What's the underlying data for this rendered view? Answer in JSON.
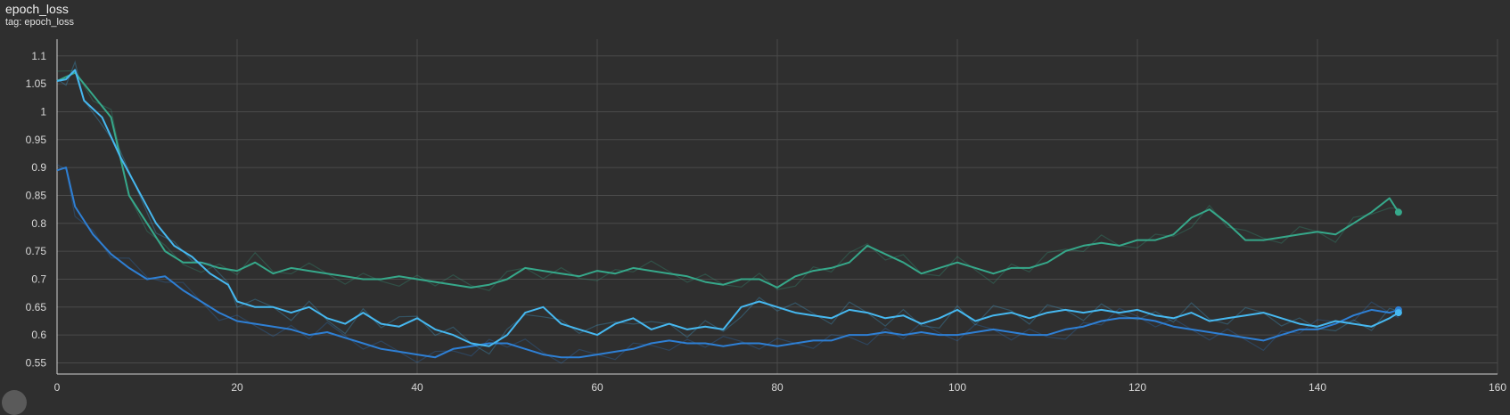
{
  "header": {
    "title": "epoch_loss",
    "tag": "tag: epoch_loss"
  },
  "colors": {
    "background": "#2f2f2f",
    "grid": "#4a4a4a",
    "axis": "#d0d0d0",
    "series_green": "#36a88a",
    "series_blue": "#2e7fd4",
    "series_cyan": "#46b8f0"
  },
  "chart_data": {
    "type": "line",
    "title": "epoch_loss",
    "xlabel": "",
    "ylabel": "",
    "xlim": [
      0,
      160
    ],
    "ylim": [
      0.53,
      1.13
    ],
    "grid": true,
    "x_ticks": [
      0,
      20,
      40,
      60,
      80,
      100,
      120,
      140,
      160
    ],
    "y_ticks": [
      0.55,
      0.6,
      0.65,
      0.7,
      0.75,
      0.8,
      0.85,
      0.9,
      0.95,
      1,
      1.05,
      1.1
    ],
    "x_tick_labels": [
      "0",
      "20",
      "40",
      "60",
      "80",
      "100",
      "120",
      "140",
      "160"
    ],
    "y_tick_labels": [
      "0.55",
      "0.6",
      "0.65",
      "0.7",
      "0.75",
      "0.8",
      "0.85",
      "0.9",
      "0.95",
      "1",
      "1.05",
      "1.1"
    ],
    "series": [
      {
        "color": "#36a88a",
        "points": [
          [
            0,
            1.055
          ],
          [
            2,
            1.07
          ],
          [
            4,
            1.03
          ],
          [
            6,
            0.99
          ],
          [
            8,
            0.85
          ],
          [
            10,
            0.8
          ],
          [
            12,
            0.75
          ],
          [
            14,
            0.73
          ],
          [
            16,
            0.73
          ],
          [
            18,
            0.72
          ],
          [
            20,
            0.715
          ],
          [
            22,
            0.73
          ],
          [
            24,
            0.71
          ],
          [
            26,
            0.72
          ],
          [
            28,
            0.715
          ],
          [
            30,
            0.71
          ],
          [
            32,
            0.705
          ],
          [
            34,
            0.7
          ],
          [
            36,
            0.7
          ],
          [
            38,
            0.705
          ],
          [
            40,
            0.7
          ],
          [
            42,
            0.695
          ],
          [
            44,
            0.69
          ],
          [
            46,
            0.685
          ],
          [
            48,
            0.69
          ],
          [
            50,
            0.7
          ],
          [
            52,
            0.72
          ],
          [
            54,
            0.715
          ],
          [
            56,
            0.71
          ],
          [
            58,
            0.705
          ],
          [
            60,
            0.715
          ],
          [
            62,
            0.71
          ],
          [
            64,
            0.72
          ],
          [
            66,
            0.715
          ],
          [
            68,
            0.71
          ],
          [
            70,
            0.705
          ],
          [
            72,
            0.695
          ],
          [
            74,
            0.69
          ],
          [
            76,
            0.7
          ],
          [
            78,
            0.7
          ],
          [
            80,
            0.685
          ],
          [
            82,
            0.705
          ],
          [
            84,
            0.715
          ],
          [
            86,
            0.72
          ],
          [
            88,
            0.73
          ],
          [
            90,
            0.76
          ],
          [
            92,
            0.745
          ],
          [
            94,
            0.73
          ],
          [
            96,
            0.71
          ],
          [
            98,
            0.72
          ],
          [
            100,
            0.73
          ],
          [
            102,
            0.72
          ],
          [
            104,
            0.71
          ],
          [
            106,
            0.72
          ],
          [
            108,
            0.72
          ],
          [
            110,
            0.73
          ],
          [
            112,
            0.75
          ],
          [
            114,
            0.76
          ],
          [
            116,
            0.765
          ],
          [
            118,
            0.76
          ],
          [
            120,
            0.77
          ],
          [
            122,
            0.77
          ],
          [
            124,
            0.78
          ],
          [
            126,
            0.81
          ],
          [
            128,
            0.825
          ],
          [
            130,
            0.8
          ],
          [
            132,
            0.77
          ],
          [
            134,
            0.77
          ],
          [
            136,
            0.775
          ],
          [
            138,
            0.78
          ],
          [
            140,
            0.785
          ],
          [
            142,
            0.78
          ],
          [
            144,
            0.8
          ],
          [
            146,
            0.82
          ],
          [
            148,
            0.845
          ],
          [
            149,
            0.82
          ]
        ]
      },
      {
        "color": "#2e7fd4",
        "points": [
          [
            0,
            0.895
          ],
          [
            1,
            0.9
          ],
          [
            2,
            0.83
          ],
          [
            4,
            0.78
          ],
          [
            6,
            0.745
          ],
          [
            8,
            0.72
          ],
          [
            10,
            0.7
          ],
          [
            12,
            0.705
          ],
          [
            14,
            0.68
          ],
          [
            16,
            0.66
          ],
          [
            18,
            0.64
          ],
          [
            20,
            0.625
          ],
          [
            22,
            0.62
          ],
          [
            24,
            0.615
          ],
          [
            26,
            0.61
          ],
          [
            28,
            0.6
          ],
          [
            30,
            0.605
          ],
          [
            32,
            0.595
          ],
          [
            34,
            0.585
          ],
          [
            36,
            0.575
          ],
          [
            38,
            0.57
          ],
          [
            40,
            0.565
          ],
          [
            42,
            0.56
          ],
          [
            44,
            0.575
          ],
          [
            46,
            0.58
          ],
          [
            48,
            0.585
          ],
          [
            50,
            0.585
          ],
          [
            52,
            0.575
          ],
          [
            54,
            0.565
          ],
          [
            56,
            0.56
          ],
          [
            58,
            0.56
          ],
          [
            60,
            0.565
          ],
          [
            62,
            0.57
          ],
          [
            64,
            0.575
          ],
          [
            66,
            0.585
          ],
          [
            68,
            0.59
          ],
          [
            70,
            0.585
          ],
          [
            72,
            0.585
          ],
          [
            74,
            0.58
          ],
          [
            76,
            0.585
          ],
          [
            78,
            0.585
          ],
          [
            80,
            0.58
          ],
          [
            82,
            0.585
          ],
          [
            84,
            0.59
          ],
          [
            86,
            0.59
          ],
          [
            88,
            0.6
          ],
          [
            90,
            0.6
          ],
          [
            92,
            0.605
          ],
          [
            94,
            0.6
          ],
          [
            96,
            0.605
          ],
          [
            98,
            0.6
          ],
          [
            100,
            0.6
          ],
          [
            102,
            0.605
          ],
          [
            104,
            0.61
          ],
          [
            106,
            0.605
          ],
          [
            108,
            0.6
          ],
          [
            110,
            0.6
          ],
          [
            112,
            0.61
          ],
          [
            114,
            0.615
          ],
          [
            116,
            0.625
          ],
          [
            118,
            0.63
          ],
          [
            120,
            0.63
          ],
          [
            122,
            0.625
          ],
          [
            124,
            0.615
          ],
          [
            126,
            0.61
          ],
          [
            128,
            0.605
          ],
          [
            130,
            0.6
          ],
          [
            132,
            0.595
          ],
          [
            134,
            0.59
          ],
          [
            136,
            0.6
          ],
          [
            138,
            0.61
          ],
          [
            140,
            0.61
          ],
          [
            142,
            0.62
          ],
          [
            144,
            0.635
          ],
          [
            146,
            0.645
          ],
          [
            148,
            0.64
          ],
          [
            149,
            0.645
          ]
        ]
      },
      {
        "color": "#46b8f0",
        "points": [
          [
            0,
            1.055
          ],
          [
            1,
            1.058
          ],
          [
            2,
            1.075
          ],
          [
            3,
            1.02
          ],
          [
            5,
            0.99
          ],
          [
            7,
            0.92
          ],
          [
            9,
            0.86
          ],
          [
            11,
            0.8
          ],
          [
            13,
            0.76
          ],
          [
            15,
            0.74
          ],
          [
            17,
            0.71
          ],
          [
            19,
            0.69
          ],
          [
            20,
            0.66
          ],
          [
            22,
            0.65
          ],
          [
            24,
            0.65
          ],
          [
            26,
            0.64
          ],
          [
            28,
            0.65
          ],
          [
            30,
            0.63
          ],
          [
            32,
            0.62
          ],
          [
            34,
            0.64
          ],
          [
            36,
            0.62
          ],
          [
            38,
            0.615
          ],
          [
            40,
            0.63
          ],
          [
            42,
            0.61
          ],
          [
            44,
            0.6
          ],
          [
            46,
            0.585
          ],
          [
            48,
            0.58
          ],
          [
            50,
            0.6
          ],
          [
            52,
            0.64
          ],
          [
            54,
            0.65
          ],
          [
            56,
            0.62
          ],
          [
            58,
            0.61
          ],
          [
            60,
            0.6
          ],
          [
            62,
            0.62
          ],
          [
            64,
            0.63
          ],
          [
            66,
            0.61
          ],
          [
            68,
            0.62
          ],
          [
            70,
            0.61
          ],
          [
            72,
            0.615
          ],
          [
            74,
            0.61
          ],
          [
            76,
            0.65
          ],
          [
            78,
            0.66
          ],
          [
            80,
            0.65
          ],
          [
            82,
            0.64
          ],
          [
            84,
            0.635
          ],
          [
            86,
            0.63
          ],
          [
            88,
            0.645
          ],
          [
            90,
            0.64
          ],
          [
            92,
            0.63
          ],
          [
            94,
            0.635
          ],
          [
            96,
            0.62
          ],
          [
            98,
            0.63
          ],
          [
            100,
            0.645
          ],
          [
            102,
            0.625
          ],
          [
            104,
            0.635
          ],
          [
            106,
            0.64
          ],
          [
            108,
            0.63
          ],
          [
            110,
            0.64
          ],
          [
            112,
            0.645
          ],
          [
            114,
            0.64
          ],
          [
            116,
            0.645
          ],
          [
            118,
            0.64
          ],
          [
            120,
            0.645
          ],
          [
            122,
            0.635
          ],
          [
            124,
            0.63
          ],
          [
            126,
            0.64
          ],
          [
            128,
            0.625
          ],
          [
            130,
            0.63
          ],
          [
            132,
            0.635
          ],
          [
            134,
            0.64
          ],
          [
            136,
            0.63
          ],
          [
            138,
            0.62
          ],
          [
            140,
            0.615
          ],
          [
            142,
            0.625
          ],
          [
            144,
            0.62
          ],
          [
            146,
            0.615
          ],
          [
            148,
            0.63
          ],
          [
            149,
            0.64
          ]
        ]
      }
    ]
  }
}
